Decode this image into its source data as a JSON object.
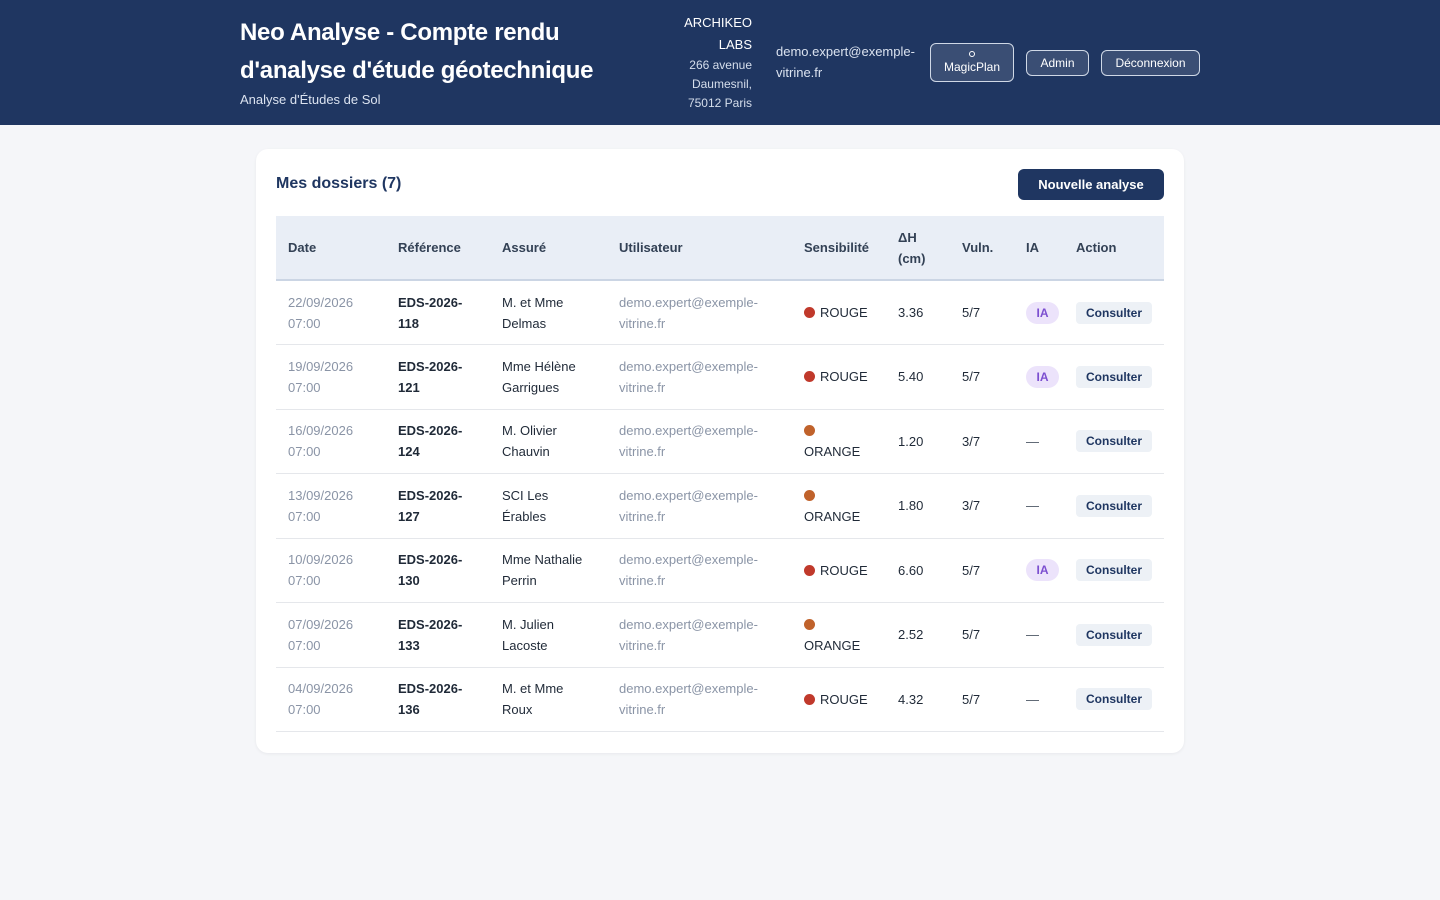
{
  "header": {
    "title": "Neo Analyse - Compte rendu d'analyse d'étude géotechnique",
    "subtitle": "Analyse d'Études de Sol",
    "company_name": "ARCHIKEO LABS",
    "company_address": "266 avenue Daumesnil, 75012 Paris",
    "user_email": "demo.expert@exemple-vitrine.fr",
    "buttons": {
      "magicplan": "MagicPlan",
      "admin": "Admin",
      "logout": "Déconnexion"
    }
  },
  "main": {
    "title": "Mes dossiers (7)",
    "new_button": "Nouvelle analyse",
    "columns": {
      "date": "Date",
      "reference": "Référence",
      "assure": "Assuré",
      "utilisateur": "Utilisateur",
      "sensibilite": "Sensibilité",
      "delta_h": "ΔH (cm)",
      "vuln": "Vuln.",
      "ia": "IA",
      "action": "Action"
    },
    "rows": [
      {
        "date": "22/09/2026 07:00",
        "reference": "EDS-2026-118",
        "assure": "M. et Mme Delmas",
        "utilisateur": "demo.expert@exemple-vitrine.fr",
        "sensibilite": "ROUGE",
        "delta_h": "3.36",
        "vuln": "5/7",
        "ia": "IA",
        "action": "Consulter"
      },
      {
        "date": "19/09/2026 07:00",
        "reference": "EDS-2026-121",
        "assure": "Mme Hélène Garrigues",
        "utilisateur": "demo.expert@exemple-vitrine.fr",
        "sensibilite": "ROUGE",
        "delta_h": "5.40",
        "vuln": "5/7",
        "ia": "IA",
        "action": "Consulter"
      },
      {
        "date": "16/09/2026 07:00",
        "reference": "EDS-2026-124",
        "assure": "M. Olivier Chauvin",
        "utilisateur": "demo.expert@exemple-vitrine.fr",
        "sensibilite": "ORANGE",
        "delta_h": "1.20",
        "vuln": "3/7",
        "ia": "—",
        "action": "Consulter"
      },
      {
        "date": "13/09/2026 07:00",
        "reference": "EDS-2026-127",
        "assure": "SCI Les Érables",
        "utilisateur": "demo.expert@exemple-vitrine.fr",
        "sensibilite": "ORANGE",
        "delta_h": "1.80",
        "vuln": "3/7",
        "ia": "—",
        "action": "Consulter"
      },
      {
        "date": "10/09/2026 07:00",
        "reference": "EDS-2026-130",
        "assure": "Mme Nathalie Perrin",
        "utilisateur": "demo.expert@exemple-vitrine.fr",
        "sensibilite": "ROUGE",
        "delta_h": "6.60",
        "vuln": "5/7",
        "ia": "IA",
        "action": "Consulter"
      },
      {
        "date": "07/09/2026 07:00",
        "reference": "EDS-2026-133",
        "assure": "M. Julien Lacoste",
        "utilisateur": "demo.expert@exemple-vitrine.fr",
        "sensibilite": "ORANGE",
        "delta_h": "2.52",
        "vuln": "5/7",
        "ia": "—",
        "action": "Consulter"
      },
      {
        "date": "04/09/2026 07:00",
        "reference": "EDS-2026-136",
        "assure": "M. et Mme Roux",
        "utilisateur": "demo.expert@exemple-vitrine.fr",
        "sensibilite": "ROUGE",
        "delta_h": "4.32",
        "vuln": "5/7",
        "ia": "—",
        "action": "Consulter"
      }
    ]
  },
  "colors": {
    "header_bg": "#1f3661",
    "rouge": "#c0392b",
    "orange": "#c0622b",
    "ia_badge_bg": "#ece3fb",
    "ia_badge_text": "#7c4fd0"
  }
}
